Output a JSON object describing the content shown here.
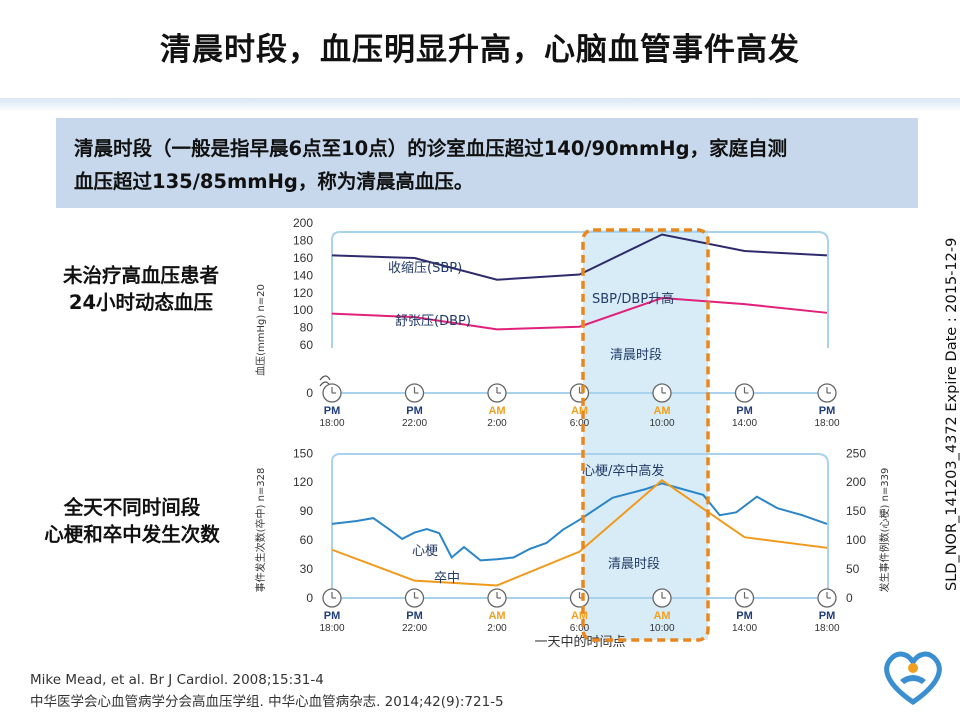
{
  "slide": {
    "title": "清晨时段，血压明显升高，心脑血管事件高发",
    "definition_line1": "清晨时段（一般是指早晨6点至10点）的诊室血压超过140/90mmHg，家庭自测",
    "definition_line2": "血压超过135/85mmHg，称为清晨高血压。",
    "side_label_top_1": "未治疗高血压患者",
    "side_label_top_2": "24小时动态血压",
    "side_label_bottom_1": "全天不同时间段",
    "side_label_bottom_2": "心梗和卒中发生次数",
    "vertical_text": "SLD_NOR_141203_4372  Expire Date : 2015-12-9",
    "ref1": "Mike Mead, et al. Br J Cardiol. 2008;15:31-4",
    "ref2": "中华医学会心血管病学分会高血压学组. 中华心血管病杂志. 2014;42(9):721-5"
  },
  "colors": {
    "sbp": "#2d2b6b",
    "dbp": "#e0207a",
    "mi": "#2a86c8",
    "stroke": "#f09a1c",
    "highlight_border": "#e8871e",
    "highlight_fill": "#d8ecf7",
    "frame": "#a9d3ec"
  },
  "x_ticks": [
    {
      "period": "PM",
      "time": "18:00"
    },
    {
      "period": "PM",
      "time": "22:00"
    },
    {
      "period": "AM",
      "time": "2:00"
    },
    {
      "period": "AM",
      "time": "6:00"
    },
    {
      "period": "AM",
      "time": "10:00"
    },
    {
      "period": "PM",
      "time": "14:00"
    },
    {
      "period": "PM",
      "time": "18:00"
    }
  ],
  "chart_data": [
    {
      "type": "line",
      "ylabel": "血压(mmHg) n=20",
      "y_ticks": [
        0,
        60,
        80,
        100,
        120,
        140,
        160,
        180,
        200
      ],
      "ylim": [
        0,
        200
      ],
      "x": [
        "18:00",
        "22:00",
        "2:00",
        "6:00",
        "10:00",
        "14:00",
        "18:00"
      ],
      "series": [
        {
          "name": "收缩压(SBP)",
          "values": [
            163,
            160,
            135,
            141,
            187,
            168,
            163
          ]
        },
        {
          "name": "舒张压(DBP)",
          "values": [
            96,
            92,
            78,
            81,
            114,
            107,
            97
          ]
        }
      ],
      "annotations": [
        "SBP/DBP升高",
        "清晨时段"
      ]
    },
    {
      "type": "line",
      "ylabel": "事件发生次数(卒中) n=328",
      "ylabel_right": "发生事件例数(心梗) n=339",
      "xlabel": "一天中的时间点",
      "y_ticks": [
        0,
        30,
        60,
        90,
        120,
        150
      ],
      "y_ticks_right": [
        0,
        50,
        100,
        150,
        200,
        250
      ],
      "ylim": [
        0,
        150
      ],
      "ylim_right": [
        0,
        250
      ],
      "mi_x": [
        0,
        0.3,
        0.5,
        0.7,
        0.85,
        1.0,
        1.15,
        1.3,
        1.45,
        1.6,
        1.8,
        2.0,
        2.2,
        2.4,
        2.6,
        2.8,
        3.0,
        3.4,
        3.8,
        4.0,
        4.2,
        4.5,
        4.7,
        4.9,
        5.15,
        5.4,
        5.7,
        6.0
      ],
      "mi_values": [
        128,
        133,
        138,
        118,
        102,
        113,
        119,
        112,
        70,
        88,
        65,
        67,
        70,
        85,
        95,
        118,
        135,
        173,
        188,
        198,
        190,
        178,
        143,
        148,
        175,
        155,
        143,
        128
      ],
      "stroke_x": [
        0,
        1,
        2,
        3,
        4,
        5,
        6
      ],
      "stroke_values": [
        50,
        18,
        13,
        48,
        122,
        63,
        52
      ],
      "series_names": [
        "心梗",
        "卒中"
      ],
      "annotations": [
        "心梗/卒中高发",
        "清晨时段"
      ]
    }
  ]
}
